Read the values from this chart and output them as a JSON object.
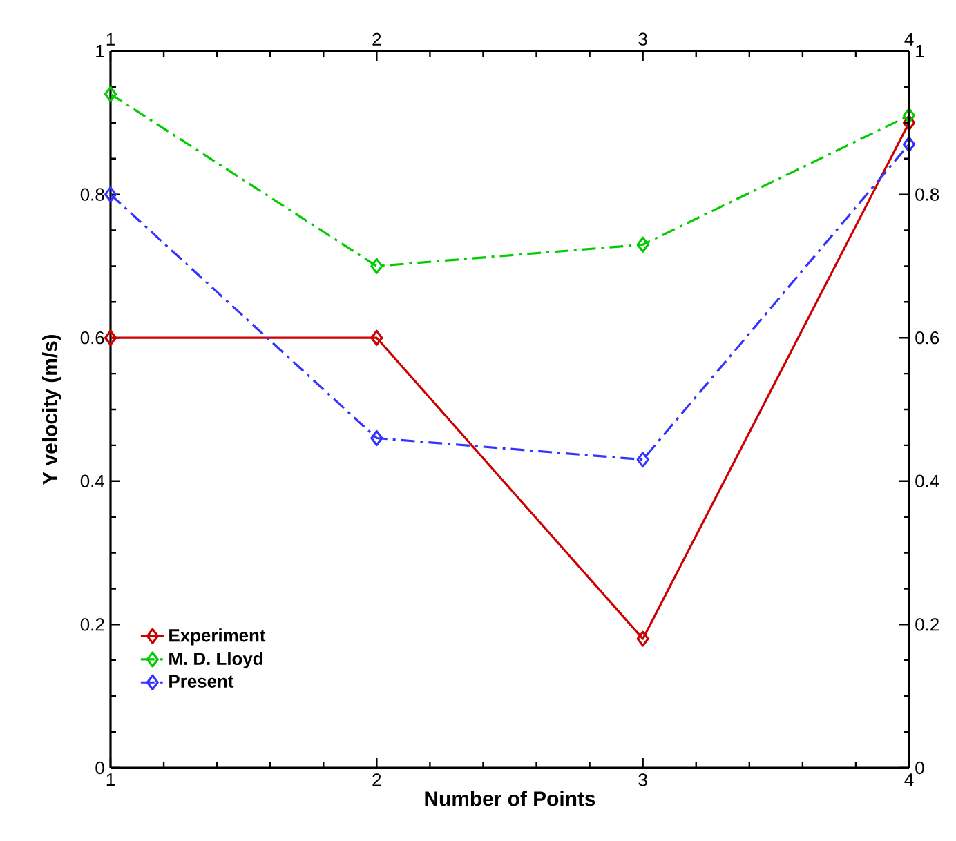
{
  "chart_data": {
    "type": "line",
    "xlabel": "Number of Points",
    "ylabel": "Y velocity (m/s)",
    "x": [
      1,
      2,
      3,
      4
    ],
    "series": [
      {
        "name": "Experiment",
        "color": "#cc0000",
        "values": [
          0.6,
          0.6,
          0.18,
          0.9
        ],
        "line_style": "solid"
      },
      {
        "name": "M. D. Lloyd",
        "color": "#00cc00",
        "values": [
          0.94,
          0.7,
          0.73,
          0.91
        ],
        "line_style": "dashdot"
      },
      {
        "name": "Present",
        "color": "#3333ff",
        "values": [
          0.8,
          0.46,
          0.43,
          0.87
        ],
        "line_style": "dashdot"
      }
    ],
    "xlim": [
      1,
      4
    ],
    "xticks": [
      1,
      2,
      3,
      4
    ],
    "x2lim": [
      1,
      4
    ],
    "x2ticks": [
      1,
      2,
      3,
      4
    ],
    "ylim": [
      0,
      1
    ],
    "yticks": [
      0,
      0.2,
      0.4,
      0.6,
      0.8,
      1
    ],
    "y2lim": [
      0,
      1
    ],
    "y2ticks": [
      0,
      0.2,
      0.4,
      0.6,
      0.8,
      1
    ],
    "marker": "diamond",
    "grid": false,
    "legend": "bottom left"
  }
}
